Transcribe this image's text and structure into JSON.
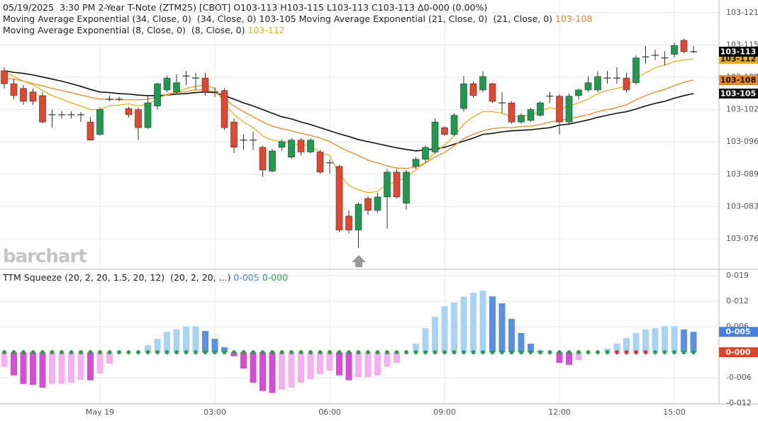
{
  "chart_data": [
    {
      "type": "candlestick",
      "title": "05/19/2025  3:30 PM 2-Year T-Note (ZTM25) [CBOT] O103-113 H103-115 L103-113 C103-113 Δ0-000 (0.00%)",
      "watermark": "barchart",
      "categories": [
        null,
        null,
        null,
        null,
        null,
        null,
        null,
        null,
        null,
        null,
        "May 19",
        null,
        null,
        null,
        null,
        null,
        null,
        null,
        null,
        null,
        null,
        null,
        "03:00",
        null,
        null,
        null,
        null,
        null,
        null,
        null,
        null,
        null,
        null,
        null,
        "06:00",
        null,
        null,
        null,
        null,
        null,
        null,
        null,
        null,
        null,
        null,
        null,
        "09:00",
        null,
        null,
        null,
        null,
        null,
        null,
        null,
        null,
        null,
        null,
        null,
        "12:00",
        null,
        null,
        null,
        null,
        null,
        null,
        null,
        null,
        null,
        null,
        null,
        "15:00",
        null,
        null
      ],
      "open": [
        11.0,
        10.75,
        10.66,
        10.59,
        10.52,
        10.15,
        10.15,
        10.15,
        10.15,
        10.01,
        9.77,
        10.45,
        10.45,
        10.27,
        10.25,
        9.9,
        10.32,
        10.63,
        10.59,
        10.9,
        10.86,
        10.86,
        10.59,
        10.62,
        10.01,
        9.66,
        9.66,
        9.52,
        9.06,
        9.52,
        9.33,
        9.66,
        9.43,
        9.43,
        9.22,
        9.15,
        8.19,
        7.92,
        8.53,
        8.3,
        8.56,
        9.04,
        8.44,
        9.15,
        9.29,
        9.43,
        9.9,
        9.77,
        10.27,
        10.75,
        10.63,
        10.75,
        10.38,
        10.38,
        10.01,
        10.04,
        10.14,
        10.51,
        10.51,
        10.01,
        10.52,
        10.63,
        10.63,
        10.86,
        10.86,
        10.86,
        10.77,
        11.27,
        11.3,
        11.25,
        11.32,
        11.59,
        11.37
      ],
      "high": [
        11.07,
        10.84,
        10.73,
        10.66,
        10.59,
        10.25,
        10.22,
        10.22,
        10.2,
        10.11,
        10.29,
        10.52,
        10.5,
        10.3,
        10.29,
        10.52,
        10.77,
        10.9,
        10.93,
        11.0,
        10.96,
        10.96,
        10.68,
        10.66,
        10.08,
        9.77,
        9.82,
        9.55,
        9.49,
        9.67,
        9.7,
        9.7,
        9.7,
        9.47,
        9.29,
        9.18,
        8.3,
        8.46,
        8.57,
        8.64,
        9.1,
        9.1,
        9.08,
        9.33,
        9.56,
        10.08,
        9.93,
        10.18,
        10.9,
        10.79,
        10.99,
        10.77,
        10.59,
        10.41,
        10.18,
        10.29,
        10.41,
        10.59,
        10.55,
        10.56,
        10.66,
        10.89,
        10.99,
        11.0,
        11.07,
        10.96,
        11.3,
        11.48,
        11.41,
        11.38,
        11.55,
        11.62,
        11.48
      ],
      "low": [
        10.66,
        10.45,
        10.34,
        10.34,
        9.98,
        9.9,
        10.08,
        10.08,
        10.01,
        9.66,
        9.74,
        10.41,
        10.41,
        10.1,
        9.66,
        9.88,
        10.25,
        10.59,
        10.56,
        10.73,
        10.63,
        10.52,
        10.49,
        9.86,
        9.41,
        9.47,
        9.47,
        8.95,
        9.04,
        9.45,
        9.3,
        9.36,
        9.4,
        9.01,
        9.01,
        7.88,
        7.85,
        7.58,
        8.21,
        8.26,
        7.95,
        8.53,
        8.32,
        9.1,
        9.22,
        9.4,
        9.74,
        9.74,
        10.21,
        10.48,
        10.59,
        10.38,
        10.18,
        9.98,
        9.98,
        10.01,
        10.11,
        10.38,
        9.77,
        9.98,
        10.45,
        10.59,
        10.59,
        10.75,
        10.75,
        10.59,
        10.73,
        11.14,
        11.21,
        11.11,
        11.26,
        11.34,
        11.34
      ],
      "close": [
        10.75,
        10.52,
        10.41,
        10.41,
        10.01,
        10.15,
        10.15,
        10.15,
        10.15,
        9.66,
        10.25,
        10.45,
        10.45,
        10.15,
        9.9,
        10.38,
        10.75,
        10.86,
        10.77,
        10.9,
        10.86,
        10.59,
        10.59,
        9.9,
        9.52,
        9.66,
        9.66,
        9.08,
        9.45,
        9.63,
        9.66,
        9.43,
        9.66,
        9.04,
        9.22,
        7.92,
        7.92,
        8.42,
        8.3,
        8.56,
        9.04,
        8.56,
        9.04,
        9.29,
        9.52,
        10.01,
        9.77,
        10.14,
        10.75,
        10.52,
        10.89,
        10.41,
        10.38,
        10.01,
        10.14,
        10.25,
        10.38,
        10.51,
        10.01,
        10.51,
        10.63,
        10.77,
        10.89,
        10.86,
        10.86,
        10.63,
        11.25,
        11.27,
        11.3,
        11.25,
        11.49,
        11.37,
        11.37
      ],
      "up_color": "#1e9b4f",
      "down_color": "#e2482f",
      "doji_color": "#333",
      "last_label": "103-113",
      "series": [
        {
          "name": "Moving Average Exponential (34, Close, 0)  (34, Close, 0)",
          "color": "#111111",
          "last_label": "103-105",
          "values": [
            11.0,
            10.97,
            10.95,
            10.92,
            10.88,
            10.84,
            10.8,
            10.75,
            10.7,
            10.64,
            10.59,
            10.58,
            10.56,
            10.55,
            10.53,
            10.52,
            10.52,
            10.53,
            10.55,
            10.56,
            10.58,
            10.59,
            10.58,
            10.52,
            10.45,
            10.38,
            10.32,
            10.25,
            10.18,
            10.11,
            10.07,
            10.01,
            9.96,
            9.9,
            9.84,
            9.78,
            9.73,
            9.67,
            9.63,
            9.59,
            9.55,
            9.51,
            9.48,
            9.45,
            9.47,
            9.49,
            9.52,
            9.58,
            9.64,
            9.7,
            9.77,
            9.79,
            9.82,
            9.84,
            9.85,
            9.86,
            9.88,
            9.9,
            9.95,
            9.97,
            10.01,
            10.05,
            10.1,
            10.14,
            10.18,
            10.21,
            10.26,
            10.32,
            10.37,
            10.41,
            10.47,
            10.52,
            10.56
          ]
        },
        {
          "name": "Moving Average Exponential (21, Close, 0)  (21, Close, 0)",
          "color": "#e8872a",
          "last_label": "103-108",
          "values": [
            10.86,
            10.84,
            10.8,
            10.75,
            10.71,
            10.66,
            10.62,
            10.58,
            10.53,
            10.49,
            10.45,
            10.45,
            10.44,
            10.44,
            10.44,
            10.45,
            10.49,
            10.53,
            10.58,
            10.6,
            10.63,
            10.63,
            10.59,
            10.45,
            10.32,
            10.21,
            10.11,
            10.01,
            9.93,
            9.88,
            9.84,
            9.79,
            9.75,
            9.7,
            9.63,
            9.53,
            9.44,
            9.36,
            9.27,
            9.22,
            9.16,
            9.12,
            9.11,
            9.14,
            9.22,
            9.33,
            9.42,
            9.55,
            9.69,
            9.77,
            9.84,
            9.88,
            9.9,
            9.9,
            9.92,
            9.93,
            9.96,
            10.01,
            10.04,
            10.07,
            10.11,
            10.15,
            10.21,
            10.25,
            10.29,
            10.34,
            10.44,
            10.52,
            10.59,
            10.64,
            10.71,
            10.78,
            10.82
          ]
        },
        {
          "name": "Moving Average Exponential (8, Close, 0)  (8, Close, 0)",
          "color": "#e0b020",
          "last_label": "103-112",
          "values": [
            10.97,
            10.89,
            10.8,
            10.73,
            10.62,
            10.52,
            10.45,
            10.38,
            10.32,
            10.25,
            10.25,
            10.32,
            10.34,
            10.36,
            10.32,
            10.36,
            10.45,
            10.55,
            10.59,
            10.66,
            10.7,
            10.73,
            10.66,
            10.38,
            10.15,
            10.01,
            9.9,
            9.74,
            9.66,
            9.63,
            9.6,
            9.56,
            9.56,
            9.42,
            9.36,
            9.01,
            8.78,
            8.7,
            8.64,
            8.67,
            8.81,
            8.85,
            8.95,
            9.08,
            9.22,
            9.42,
            9.56,
            9.74,
            9.97,
            10.11,
            10.21,
            10.21,
            10.18,
            10.11,
            10.12,
            10.15,
            10.21,
            10.29,
            10.25,
            10.32,
            10.38,
            10.45,
            10.56,
            10.62,
            10.66,
            10.7,
            10.86,
            10.96,
            11.06,
            11.11,
            11.18,
            11.21,
            11.23
          ]
        }
      ],
      "ylim": [
        7.16,
        12.37
      ],
      "yticks": [
        {
          "value": 12.125,
          "label": "103-121"
        },
        {
          "value": 11.5,
          "label": "103-115"
        },
        {
          "value": 10.875,
          "label": "103-108"
        },
        {
          "value": 10.25,
          "label": "103-102"
        },
        {
          "value": 9.625,
          "label": "103-096"
        },
        {
          "value": 9.0,
          "label": "103-089"
        },
        {
          "value": 8.375,
          "label": "103-083"
        },
        {
          "value": 7.75,
          "label": "103-076"
        }
      ],
      "grid": true
    },
    {
      "type": "bar",
      "name": "TTM Squeeze (20, 2, 20, 1.5, 20, 12)  (20, 2, 20, ...)",
      "value_label": "0-005",
      "dot_label": "0-000",
      "values": [
        -0.36,
        -0.57,
        -0.78,
        -0.8,
        -0.87,
        -0.78,
        -0.78,
        -0.75,
        -0.68,
        -0.69,
        -0.52,
        -0.28,
        0,
        0,
        0,
        0.17,
        0.33,
        0.5,
        0.56,
        0.63,
        0.64,
        0.52,
        0.33,
        0.12,
        -0.1,
        -0.4,
        -0.75,
        -0.95,
        -1.0,
        -0.92,
        -0.87,
        -0.75,
        -0.66,
        -0.54,
        -0.45,
        -0.57,
        -0.69,
        -0.61,
        -0.61,
        -0.57,
        -0.35,
        -0.26,
        0,
        0.21,
        0.59,
        0.87,
        1.13,
        1.22,
        1.37,
        1.46,
        1.51,
        1.37,
        1.2,
        0.82,
        0.47,
        0.21,
        0.03,
        0,
        -0.26,
        -0.31,
        -0.19,
        0,
        0,
        0.09,
        0.21,
        0.35,
        0.47,
        0.56,
        0.59,
        0.64,
        0.64,
        0.56,
        0.5
      ],
      "colors": [
        "#a9d3f5",
        "#5b8fe0",
        "#f5b0ef",
        "#d24fd2"
      ],
      "dot_colors": [
        "#2e9e4e",
        "#2e9e4e",
        "#2e9e4e",
        "#2e9e4e",
        "#2e9e4e",
        "#2e9e4e",
        "#2e9e4e",
        "#2e9e4e",
        "#2e9e4e",
        "#2e9e4e",
        "#2e9e4e",
        "#2e9e4e",
        "#2e9e4e",
        "#2e9e4e",
        "#2e9e4e",
        "#2e9e4e",
        "#2e9e4e",
        "#2e9e4e",
        "#2e9e4e",
        "#2e9e4e",
        "#2e9e4e",
        "#2e9e4e",
        "#2e9e4e",
        "#2e9e4e",
        "#2e9e4e",
        "#2e9e4e",
        "#2e9e4e",
        "#2e9e4e",
        "#2e9e4e",
        "#2e9e4e",
        "#2e9e4e",
        "#2e9e4e",
        "#2e9e4e",
        "#2e9e4e",
        "#2e9e4e",
        "#2e9e4e",
        "#2e9e4e",
        "#2e9e4e",
        "#2e9e4e",
        "#2e9e4e",
        "#2e9e4e",
        "#2e9e4e",
        "#2e9e4e",
        "#2e9e4e",
        "#2e9e4e",
        "#2e9e4e",
        "#2e9e4e",
        "#2e9e4e",
        "#2e9e4e",
        "#2e9e4e",
        "#2e9e4e",
        "#2e9e4e",
        "#2e9e4e",
        "#2e9e4e",
        "#2e9e4e",
        "#2e9e4e",
        "#2e9e4e",
        "#2e9e4e",
        "#2e9e4e",
        "#2e9e4e",
        "#2e9e4e",
        "#2e9e4e",
        "#2e9e4e",
        "#2e9e4e",
        "#e0322a",
        "#e0322a",
        "#e0322a",
        "#e0322a",
        "#2e9e4e",
        "#2e9e4e",
        "#2e9e4e",
        "#2e9e4e",
        "#2e9e4e"
      ],
      "label_color": "#4a7fe0",
      "dot_label_color": "#2e9e4e",
      "dot_box_color": "#e0422a",
      "ylim": [
        -1.27,
        2.0
      ],
      "yticks": [
        {
          "value": 1.875,
          "label": "0-019"
        },
        {
          "value": 1.25,
          "label": "0-012"
        },
        {
          "value": 0.625,
          "label": "0-006"
        },
        {
          "value": -0.625,
          "label": "-0-006"
        },
        {
          "value": -1.25,
          "label": "-0-012"
        }
      ],
      "grid": true
    }
  ]
}
